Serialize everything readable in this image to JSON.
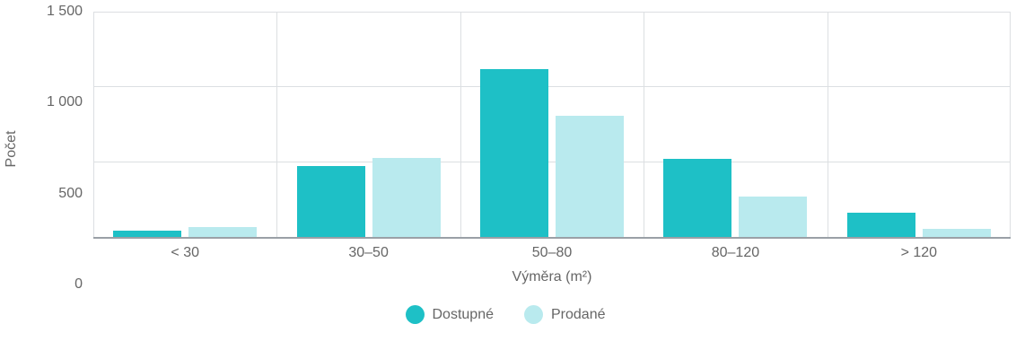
{
  "chart_data": {
    "type": "bar",
    "title": "",
    "xlabel": "Výměra (m²)",
    "ylabel": "Počet",
    "ylim": [
      0,
      1500
    ],
    "grid": true,
    "legend_position": "bottom",
    "categories": [
      "< 30",
      "30–50",
      "50–80",
      "80–120",
      "> 120"
    ],
    "yticks": [
      {
        "value": 0,
        "label": "0"
      },
      {
        "value": 500,
        "label": "500"
      },
      {
        "value": 1000,
        "label": "1 000"
      },
      {
        "value": 1500,
        "label": "1 500"
      }
    ],
    "series": [
      {
        "name": "Dostupné",
        "color": "#1ec0c6",
        "values": [
          40,
          475,
          1120,
          520,
          165
        ]
      },
      {
        "name": "Prodané",
        "color": "#b9eaee",
        "values": [
          65,
          530,
          810,
          270,
          55
        ]
      }
    ]
  }
}
